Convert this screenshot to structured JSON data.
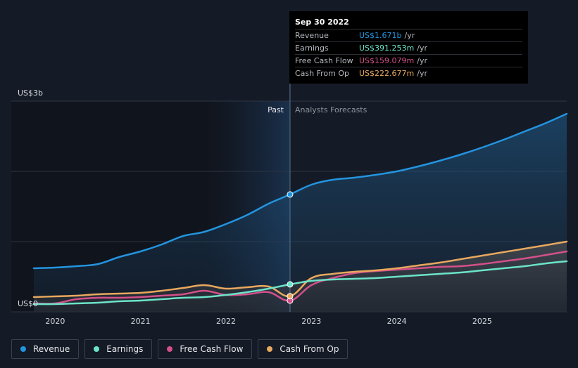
{
  "tooltip": {
    "date": "Sep 30 2022",
    "rows": [
      {
        "label": "Revenue",
        "value": "US$1.671b",
        "unit": "/yr",
        "color": "#2394df"
      },
      {
        "label": "Earnings",
        "value": "US$391.253m",
        "unit": "/yr",
        "color": "#6ce4c9"
      },
      {
        "label": "Free Cash Flow",
        "value": "US$159.079m",
        "unit": "/yr",
        "color": "#d3508a"
      },
      {
        "label": "Cash From Op",
        "value": "US$222.677m",
        "unit": "/yr",
        "color": "#e8a85e"
      }
    ]
  },
  "legend": [
    {
      "label": "Revenue",
      "color": "#2394df"
    },
    {
      "label": "Earnings",
      "color": "#6ce4c9"
    },
    {
      "label": "Free Cash Flow",
      "color": "#d3508a"
    },
    {
      "label": "Cash From Op",
      "color": "#e8a85e"
    }
  ],
  "chart_data": {
    "type": "line",
    "title": "",
    "xlabel": "",
    "ylabel": "",
    "ylim": [
      0,
      3.0
    ],
    "xlim": [
      2019.75,
      2025.99
    ],
    "y_axis_labels": [
      "US$3b",
      "US$0"
    ],
    "x_ticks": [
      "2020",
      "2021",
      "2022",
      "2023",
      "2024",
      "2025"
    ],
    "divider_x": 2022.75,
    "region_labels": {
      "past": "Past",
      "forecast": "Analysts Forecasts"
    },
    "series": [
      {
        "name": "Revenue",
        "color": "#2394df",
        "points": [
          [
            2019.75,
            0.62
          ],
          [
            2020.0,
            0.63
          ],
          [
            2020.25,
            0.65
          ],
          [
            2020.5,
            0.68
          ],
          [
            2020.75,
            0.78
          ],
          [
            2021.0,
            0.86
          ],
          [
            2021.25,
            0.96
          ],
          [
            2021.5,
            1.08
          ],
          [
            2021.75,
            1.14
          ],
          [
            2022.0,
            1.25
          ],
          [
            2022.25,
            1.38
          ],
          [
            2022.5,
            1.54
          ],
          [
            2022.75,
            1.671
          ],
          [
            2023.0,
            1.81
          ],
          [
            2023.25,
            1.88
          ],
          [
            2023.5,
            1.91
          ],
          [
            2023.75,
            1.95
          ],
          [
            2024.0,
            2.0
          ],
          [
            2024.25,
            2.07
          ],
          [
            2024.5,
            2.15
          ],
          [
            2024.75,
            2.24
          ],
          [
            2025.0,
            2.34
          ],
          [
            2025.25,
            2.45
          ],
          [
            2025.5,
            2.57
          ],
          [
            2025.75,
            2.69
          ],
          [
            2025.99,
            2.82
          ]
        ]
      },
      {
        "name": "Earnings",
        "color": "#6ce4c9",
        "points": [
          [
            2019.75,
            0.11
          ],
          [
            2020.0,
            0.11
          ],
          [
            2020.25,
            0.12
          ],
          [
            2020.5,
            0.13
          ],
          [
            2020.75,
            0.15
          ],
          [
            2021.0,
            0.16
          ],
          [
            2021.25,
            0.18
          ],
          [
            2021.5,
            0.2
          ],
          [
            2021.75,
            0.21
          ],
          [
            2022.0,
            0.24
          ],
          [
            2022.25,
            0.28
          ],
          [
            2022.5,
            0.33
          ],
          [
            2022.75,
            0.391
          ],
          [
            2023.0,
            0.44
          ],
          [
            2023.25,
            0.46
          ],
          [
            2023.5,
            0.47
          ],
          [
            2023.75,
            0.48
          ],
          [
            2024.0,
            0.5
          ],
          [
            2024.25,
            0.52
          ],
          [
            2024.5,
            0.54
          ],
          [
            2024.75,
            0.56
          ],
          [
            2025.0,
            0.59
          ],
          [
            2025.25,
            0.62
          ],
          [
            2025.5,
            0.65
          ],
          [
            2025.75,
            0.69
          ],
          [
            2025.99,
            0.72
          ]
        ]
      },
      {
        "name": "Free Cash Flow",
        "color": "#d3508a",
        "points": [
          [
            2019.75,
            0.12
          ],
          [
            2020.0,
            0.12
          ],
          [
            2020.25,
            0.18
          ],
          [
            2020.5,
            0.2
          ],
          [
            2020.75,
            0.2
          ],
          [
            2021.0,
            0.21
          ],
          [
            2021.25,
            0.23
          ],
          [
            2021.5,
            0.25
          ],
          [
            2021.75,
            0.3
          ],
          [
            2022.0,
            0.24
          ],
          [
            2022.25,
            0.25
          ],
          [
            2022.5,
            0.28
          ],
          [
            2022.75,
            0.159
          ],
          [
            2023.0,
            0.38
          ],
          [
            2023.25,
            0.48
          ],
          [
            2023.5,
            0.55
          ],
          [
            2023.75,
            0.58
          ],
          [
            2024.0,
            0.6
          ],
          [
            2024.25,
            0.62
          ],
          [
            2024.5,
            0.64
          ],
          [
            2024.75,
            0.65
          ],
          [
            2025.0,
            0.68
          ],
          [
            2025.25,
            0.72
          ],
          [
            2025.5,
            0.76
          ],
          [
            2025.75,
            0.81
          ],
          [
            2025.99,
            0.86
          ]
        ]
      },
      {
        "name": "Cash From Op",
        "color": "#e8a85e",
        "points": [
          [
            2019.75,
            0.21
          ],
          [
            2020.0,
            0.22
          ],
          [
            2020.25,
            0.23
          ],
          [
            2020.5,
            0.25
          ],
          [
            2020.75,
            0.26
          ],
          [
            2021.0,
            0.27
          ],
          [
            2021.25,
            0.3
          ],
          [
            2021.5,
            0.34
          ],
          [
            2021.75,
            0.38
          ],
          [
            2022.0,
            0.33
          ],
          [
            2022.25,
            0.35
          ],
          [
            2022.5,
            0.36
          ],
          [
            2022.75,
            0.223
          ],
          [
            2023.0,
            0.48
          ],
          [
            2023.25,
            0.54
          ],
          [
            2023.5,
            0.57
          ],
          [
            2023.75,
            0.59
          ],
          [
            2024.0,
            0.62
          ],
          [
            2024.25,
            0.66
          ],
          [
            2024.5,
            0.7
          ],
          [
            2024.75,
            0.75
          ],
          [
            2025.0,
            0.8
          ],
          [
            2025.25,
            0.85
          ],
          [
            2025.5,
            0.9
          ],
          [
            2025.75,
            0.95
          ],
          [
            2025.99,
            1.0
          ]
        ]
      }
    ]
  }
}
